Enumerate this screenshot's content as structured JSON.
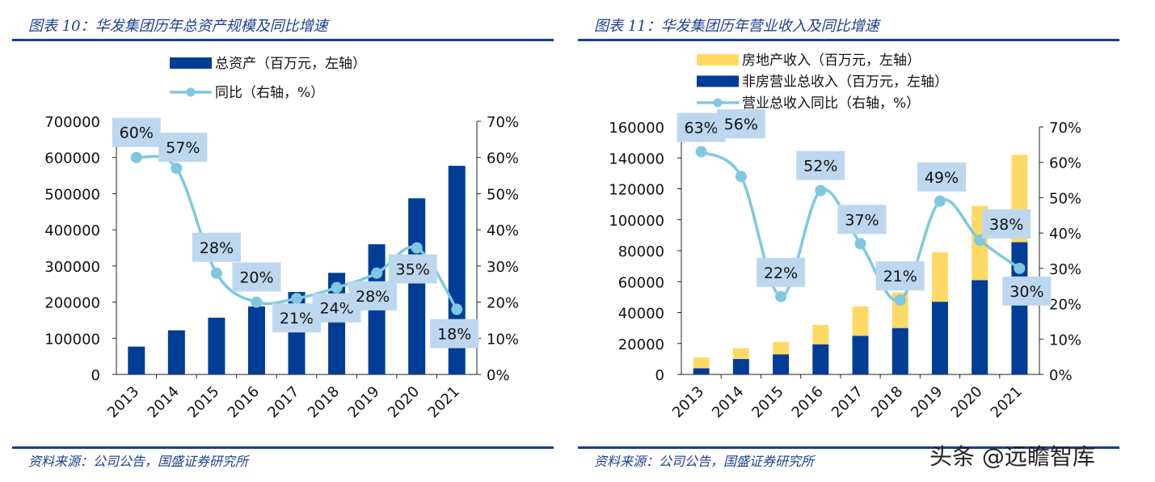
{
  "left_panel": {
    "title": "图表 10：华发集团历年总资产规模及同比增速",
    "source": "资料来源：公司公告，国盛证券研究所"
  },
  "right_panel": {
    "title": "图表 11：华发集团历年营业收入及同比增速",
    "source": "资料来源：公司公告，国盛证券研究所"
  },
  "watermark": "头条 @远瞻智库",
  "colors": {
    "dark_blue": "#003d96",
    "yellow": "#ffd966",
    "light_blue": "#7fc8e0",
    "label_bg": "#bdd7ee",
    "title": "#1f3f8f"
  },
  "chart_data": [
    {
      "type": "bar+line",
      "categories": [
        "2013",
        "2014",
        "2015",
        "2016",
        "2017",
        "2018",
        "2019",
        "2020",
        "2021"
      ],
      "y_left": {
        "range": [
          0,
          700000
        ],
        "ticks": [
          "0",
          "100000",
          "200000",
          "300000",
          "400000",
          "500000",
          "600000",
          "700000"
        ]
      },
      "y_right": {
        "range": [
          0,
          70
        ],
        "ticks": [
          "0%",
          "10%",
          "20%",
          "30%",
          "40%",
          "50%",
          "60%",
          "70%"
        ]
      },
      "legend_position": "top",
      "series": [
        {
          "name": "总资产（百万元，左轴）",
          "type": "bar",
          "axis": "left",
          "color": "#003d96",
          "values": [
            77000,
            122000,
            157000,
            188000,
            228000,
            281000,
            360000,
            487000,
            577000
          ]
        },
        {
          "name": "同比（右轴，%）",
          "type": "line",
          "axis": "right",
          "color": "#7fc8e0",
          "values": [
            60,
            57,
            28,
            20,
            21,
            24,
            28,
            35,
            18
          ],
          "labels": [
            "60%",
            "57%",
            "28%",
            "20%",
            "21%",
            "24%",
            "28%",
            "35%",
            "18%"
          ]
        }
      ]
    },
    {
      "type": "stacked-bar+line",
      "categories": [
        "2013",
        "2014",
        "2015",
        "2016",
        "2017",
        "2018",
        "2019",
        "2020",
        "2021"
      ],
      "y_left": {
        "range": [
          0,
          160000
        ],
        "ticks": [
          "0",
          "20000",
          "40000",
          "60000",
          "80000",
          "100000",
          "120000",
          "140000",
          "160000"
        ]
      },
      "y_right": {
        "range": [
          0,
          70
        ],
        "ticks": [
          "0%",
          "10%",
          "20%",
          "30%",
          "40%",
          "50%",
          "60%",
          "70%"
        ]
      },
      "legend_position": "top",
      "series": [
        {
          "name": "房地产收入（百万元，左轴）",
          "type": "bar",
          "stack": "top",
          "axis": "left",
          "color": "#ffd966",
          "values": [
            7000,
            7000,
            8000,
            12500,
            19000,
            23000,
            32000,
            48000,
            56500
          ]
        },
        {
          "name": "非房营业总收入（百万元，左轴）",
          "type": "bar",
          "stack": "bottom",
          "axis": "left",
          "color": "#003d96",
          "values": [
            4000,
            10000,
            13000,
            19500,
            25000,
            30000,
            47000,
            61000,
            85500
          ]
        },
        {
          "name": "营业总收入同比（右轴，%）",
          "type": "line",
          "axis": "right",
          "color": "#7fc8e0",
          "values": [
            63,
            56,
            22,
            52,
            37,
            21,
            49,
            38,
            30
          ],
          "labels": [
            "63%",
            "56%",
            "22%",
            "52%",
            "37%",
            "21%",
            "49%",
            "38%",
            "30%"
          ]
        }
      ]
    }
  ]
}
